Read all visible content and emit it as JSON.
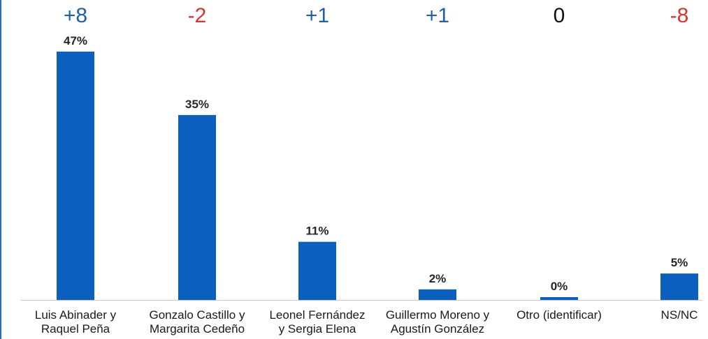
{
  "chart_data": {
    "type": "bar",
    "categories": [
      [
        "Luis Abinader y",
        "Raquel Peña"
      ],
      [
        "Gonzalo Castillo y",
        "Margarita Cedeño"
      ],
      [
        "Leonel Fernández",
        "y Sergia Elena"
      ],
      [
        "Guillermo Moreno y",
        "Agustín González"
      ],
      [
        "Otro (identificar)"
      ],
      [
        "NS/NC"
      ]
    ],
    "values": [
      47,
      35,
      11,
      2,
      0,
      5
    ],
    "value_labels": [
      "47%",
      "35%",
      "11%",
      "2%",
      "0%",
      "5%"
    ],
    "changes": [
      "+8",
      "-2",
      "+1",
      "+1",
      "0",
      "-8"
    ],
    "change_colors": [
      "#1f5fa8",
      "#e03030",
      "#1f5fa8",
      "#1f5fa8",
      "#111111",
      "#e03030"
    ],
    "bar_color": "#0a5fbf",
    "title": "",
    "xlabel": "",
    "ylabel": "",
    "ylim": [
      0,
      47
    ],
    "grid": false,
    "legend": "none"
  }
}
